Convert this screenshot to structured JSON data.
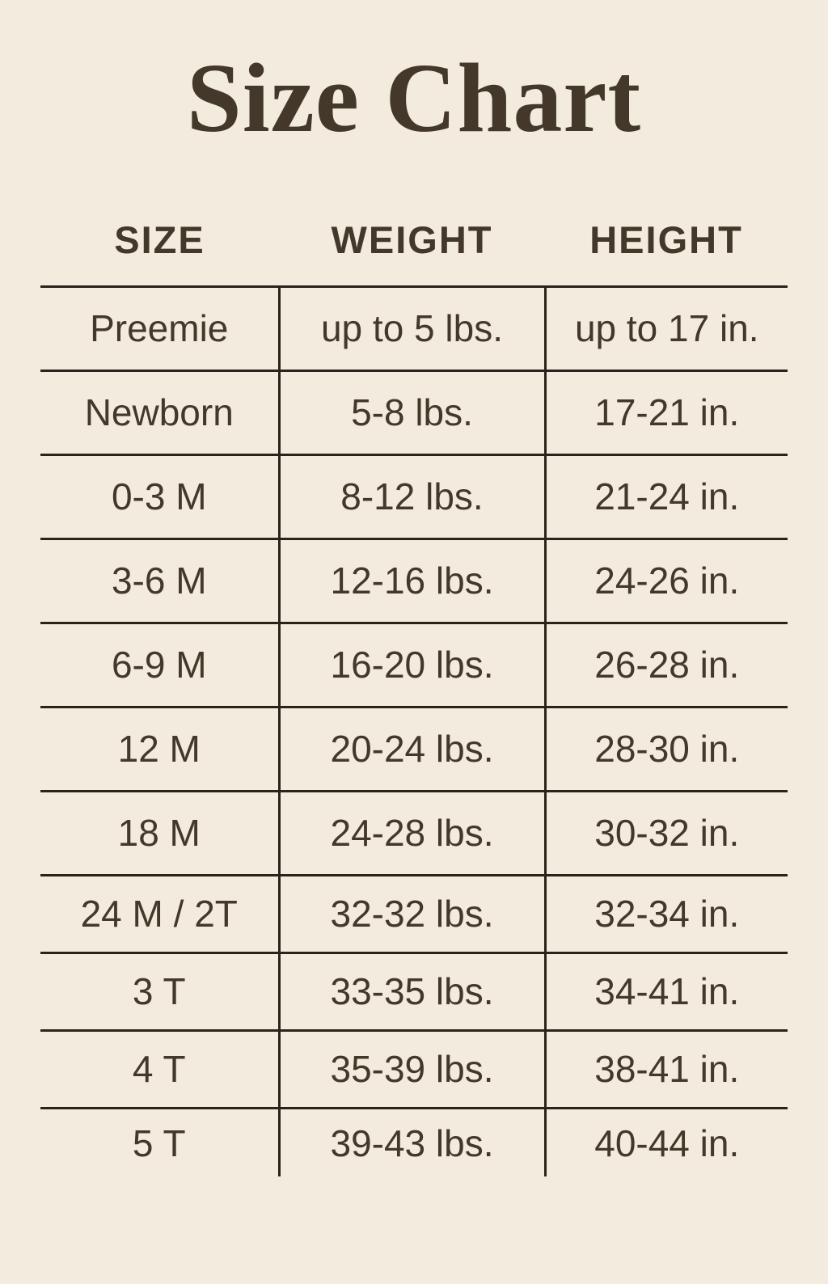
{
  "title": "Size Chart",
  "colors": {
    "background": "#f2ebde",
    "text": "#43382a",
    "rule": "#2a231b"
  },
  "chart_data": {
    "type": "table",
    "title": "Size Chart",
    "columns": [
      "SIZE",
      "WEIGHT",
      "HEIGHT"
    ],
    "rows": [
      [
        "Preemie",
        "up to 5 lbs.",
        "up to 17 in."
      ],
      [
        "Newborn",
        "5-8 lbs.",
        "17-21 in."
      ],
      [
        "0-3 M",
        "8-12 lbs.",
        "21-24 in."
      ],
      [
        "3-6 M",
        "12-16 lbs.",
        "24-26 in."
      ],
      [
        "6-9 M",
        "16-20 lbs.",
        "26-28 in."
      ],
      [
        "12 M",
        "20-24 lbs.",
        "28-30 in."
      ],
      [
        "18 M",
        "24-28 lbs.",
        "30-32 in."
      ],
      [
        "24 M / 2T",
        "32-32 lbs.",
        "32-34 in."
      ],
      [
        "3 T",
        "33-35 lbs.",
        "34-41 in."
      ],
      [
        "4 T",
        "35-39 lbs.",
        "38-41 in."
      ],
      [
        "5 T",
        "39-43 lbs.",
        "40-44 in."
      ]
    ]
  }
}
